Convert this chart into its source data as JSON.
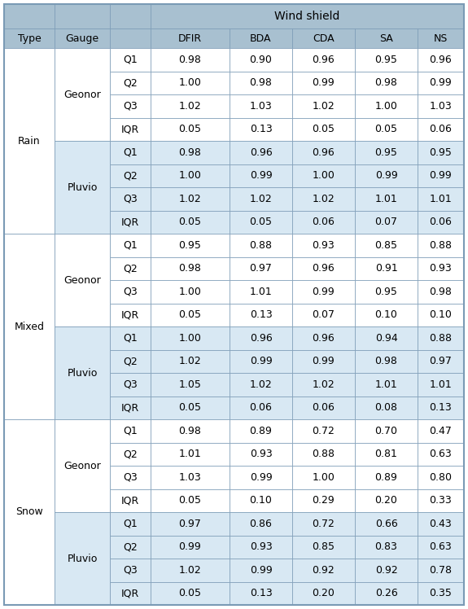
{
  "title": "Wind shield",
  "header_bg": "#a8c0d0",
  "alt_row_bg": "#d8e8f3",
  "white_bg": "#ffffff",
  "border_color": "#7a9ab5",
  "col_labels": [
    "Type",
    "Gauge",
    "",
    "DFIR",
    "BDA",
    "CDA",
    "SA",
    "NS"
  ],
  "rows": [
    {
      "type": "Rain",
      "gauge": "Geonor",
      "stat": "Q1",
      "DFIR": "0.98",
      "BDA": "0.90",
      "CDA": "0.96",
      "SA": "0.95",
      "NS": "0.96"
    },
    {
      "type": "",
      "gauge": "",
      "stat": "Q2",
      "DFIR": "1.00",
      "BDA": "0.98",
      "CDA": "0.99",
      "SA": "0.98",
      "NS": "0.99"
    },
    {
      "type": "",
      "gauge": "",
      "stat": "Q3",
      "DFIR": "1.02",
      "BDA": "1.03",
      "CDA": "1.02",
      "SA": "1.00",
      "NS": "1.03"
    },
    {
      "type": "",
      "gauge": "",
      "stat": "IQR",
      "DFIR": "0.05",
      "BDA": "0.13",
      "CDA": "0.05",
      "SA": "0.05",
      "NS": "0.06"
    },
    {
      "type": "",
      "gauge": "Pluvio",
      "stat": "Q1",
      "DFIR": "0.98",
      "BDA": "0.96",
      "CDA": "0.96",
      "SA": "0.95",
      "NS": "0.95"
    },
    {
      "type": "",
      "gauge": "",
      "stat": "Q2",
      "DFIR": "1.00",
      "BDA": "0.99",
      "CDA": "1.00",
      "SA": "0.99",
      "NS": "0.99"
    },
    {
      "type": "",
      "gauge": "",
      "stat": "Q3",
      "DFIR": "1.02",
      "BDA": "1.02",
      "CDA": "1.02",
      "SA": "1.01",
      "NS": "1.01"
    },
    {
      "type": "",
      "gauge": "",
      "stat": "IQR",
      "DFIR": "0.05",
      "BDA": "0.05",
      "CDA": "0.06",
      "SA": "0.07",
      "NS": "0.06"
    },
    {
      "type": "Mixed",
      "gauge": "Geonor",
      "stat": "Q1",
      "DFIR": "0.95",
      "BDA": "0.88",
      "CDA": "0.93",
      "SA": "0.85",
      "NS": "0.88"
    },
    {
      "type": "",
      "gauge": "",
      "stat": "Q2",
      "DFIR": "0.98",
      "BDA": "0.97",
      "CDA": "0.96",
      "SA": "0.91",
      "NS": "0.93"
    },
    {
      "type": "",
      "gauge": "",
      "stat": "Q3",
      "DFIR": "1.00",
      "BDA": "1.01",
      "CDA": "0.99",
      "SA": "0.95",
      "NS": "0.98"
    },
    {
      "type": "",
      "gauge": "",
      "stat": "IQR",
      "DFIR": "0.05",
      "BDA": "0.13",
      "CDA": "0.07",
      "SA": "0.10",
      "NS": "0.10"
    },
    {
      "type": "",
      "gauge": "Pluvio",
      "stat": "Q1",
      "DFIR": "1.00",
      "BDA": "0.96",
      "CDA": "0.96",
      "SA": "0.94",
      "NS": "0.88"
    },
    {
      "type": "",
      "gauge": "",
      "stat": "Q2",
      "DFIR": "1.02",
      "BDA": "0.99",
      "CDA": "0.99",
      "SA": "0.98",
      "NS": "0.97"
    },
    {
      "type": "",
      "gauge": "",
      "stat": "Q3",
      "DFIR": "1.05",
      "BDA": "1.02",
      "CDA": "1.02",
      "SA": "1.01",
      "NS": "1.01"
    },
    {
      "type": "",
      "gauge": "",
      "stat": "IQR",
      "DFIR": "0.05",
      "BDA": "0.06",
      "CDA": "0.06",
      "SA": "0.08",
      "NS": "0.13"
    },
    {
      "type": "Snow",
      "gauge": "Geonor",
      "stat": "Q1",
      "DFIR": "0.98",
      "BDA": "0.89",
      "CDA": "0.72",
      "SA": "0.70",
      "NS": "0.47"
    },
    {
      "type": "",
      "gauge": "",
      "stat": "Q2",
      "DFIR": "1.01",
      "BDA": "0.93",
      "CDA": "0.88",
      "SA": "0.81",
      "NS": "0.63"
    },
    {
      "type": "",
      "gauge": "",
      "stat": "Q3",
      "DFIR": "1.03",
      "BDA": "0.99",
      "CDA": "1.00",
      "SA": "0.89",
      "NS": "0.80"
    },
    {
      "type": "",
      "gauge": "",
      "stat": "IQR",
      "DFIR": "0.05",
      "BDA": "0.10",
      "CDA": "0.29",
      "SA": "0.20",
      "NS": "0.33"
    },
    {
      "type": "",
      "gauge": "Pluvio",
      "stat": "Q1",
      "DFIR": "0.97",
      "BDA": "0.86",
      "CDA": "0.72",
      "SA": "0.66",
      "NS": "0.43"
    },
    {
      "type": "",
      "gauge": "",
      "stat": "Q2",
      "DFIR": "0.99",
      "BDA": "0.93",
      "CDA": "0.85",
      "SA": "0.83",
      "NS": "0.63"
    },
    {
      "type": "",
      "gauge": "",
      "stat": "Q3",
      "DFIR": "1.02",
      "BDA": "0.99",
      "CDA": "0.92",
      "SA": "0.92",
      "NS": "0.78"
    },
    {
      "type": "",
      "gauge": "",
      "stat": "IQR",
      "DFIR": "0.05",
      "BDA": "0.13",
      "CDA": "0.20",
      "SA": "0.26",
      "NS": "0.35"
    }
  ]
}
